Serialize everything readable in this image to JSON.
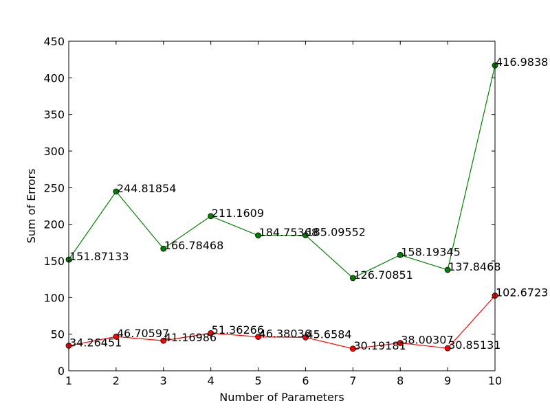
{
  "chart_data": {
    "type": "line",
    "xlabel": "Number of Parameters",
    "ylabel": "Sum of Errors",
    "xlim": [
      1,
      10
    ],
    "ylim": [
      0,
      450
    ],
    "x": [
      1,
      2,
      3,
      4,
      5,
      6,
      7,
      8,
      9,
      10
    ],
    "xticks": [
      "1",
      "2",
      "3",
      "4",
      "5",
      "6",
      "7",
      "8",
      "9",
      "10"
    ],
    "yticks": [
      "0",
      "50",
      "100",
      "150",
      "200",
      "250",
      "300",
      "350",
      "400",
      "450"
    ],
    "ytick_values": [
      0,
      50,
      100,
      150,
      200,
      250,
      300,
      350,
      400,
      450
    ],
    "grid": false,
    "series": [
      {
        "color": "#008000",
        "values": [
          151.87133,
          244.81854,
          166.78468,
          211.1609,
          184.75368,
          185.09552,
          126.70851,
          158.19345,
          137.8468,
          416.9838
        ],
        "labels": [
          "151.87133",
          "244.81854",
          "166.78468",
          "211.1609",
          "184.75368",
          "185.09552",
          "126.70851",
          "158.19345",
          "137.8468",
          "416.9838"
        ]
      },
      {
        "color": "#ff0000",
        "values": [
          34.26451,
          46.70597,
          41.16986,
          51.36266,
          46.38036,
          45.6584,
          30.19181,
          38.00307,
          30.85131,
          102.6723
        ],
        "labels": [
          "34.26451",
          "46.70597",
          "41.16986",
          "51.36266",
          "46.38036",
          "45.6584",
          "30.19181",
          "38.00307",
          "30.85131",
          "102.6723"
        ]
      }
    ]
  }
}
